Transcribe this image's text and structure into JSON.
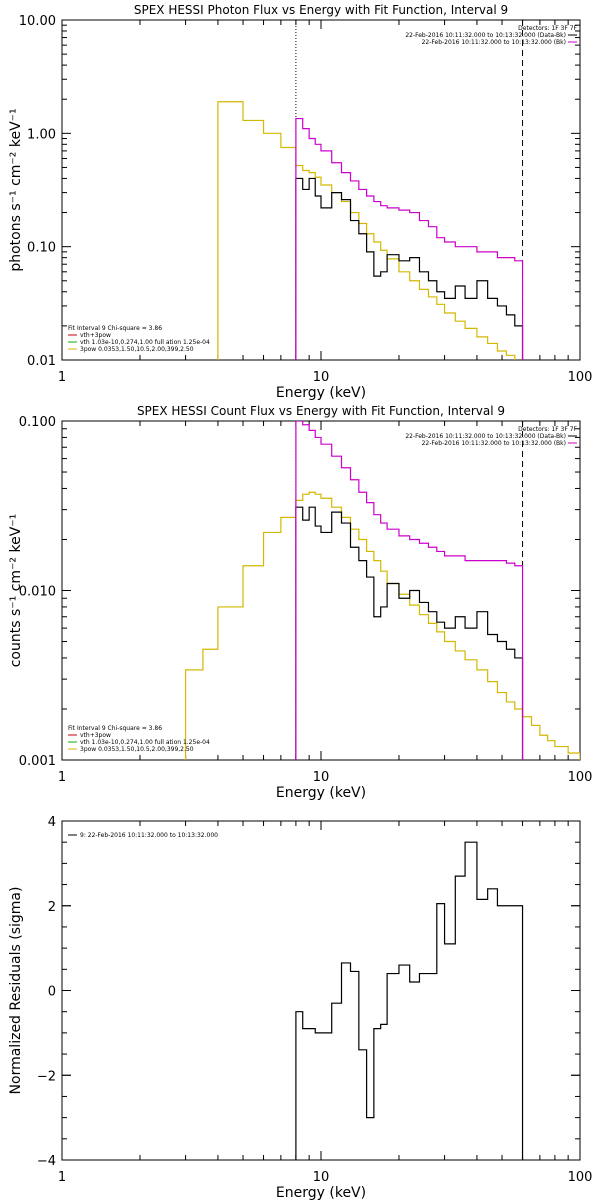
{
  "chart_data": [
    {
      "type": "line",
      "title": "SPEX HESSI Photon Flux vs Energy with Fit Function, Interval 9",
      "xlabel": "Energy (keV)",
      "ylabel": "photons s⁻¹ cm⁻² keV⁻¹",
      "xscale": "log",
      "yscale": "log",
      "xlim": [
        1,
        100
      ],
      "ylim": [
        0.01,
        10
      ],
      "xticks": [
        "1",
        "10",
        "100"
      ],
      "yticks": [
        {
          "v": 0.01,
          "label": "0.01"
        },
        {
          "v": 0.1,
          "label": "0.10"
        },
        {
          "v": 1,
          "label": "1.00"
        },
        {
          "v": 10,
          "label": "10.00"
        }
      ],
      "vlines": [
        {
          "x": 8,
          "style": "dotted"
        },
        {
          "x": 60,
          "style": "dashed"
        }
      ],
      "info_lines": [
        {
          "text": "Detectors: 1F 3F 7F",
          "color": ""
        },
        {
          "text": "22-Feb-2016 10:11:32.000 to 10:13:32.000 (Data-Bk)",
          "color": "#000000"
        },
        {
          "text": "22-Feb-2016 10:11:32.000 to 10:13:32.000 (Bk)",
          "color": "#cc00cc"
        }
      ],
      "legend": [
        {
          "text": "Fit Interval 9   Chi-square = 3.86",
          "color": ""
        },
        {
          "text": "vth+3pow",
          "color": "#cc0000"
        },
        {
          "text": "vth 1.03e-10,0.274,1.00  full ation 1.25e-04",
          "color": "#00b000"
        },
        {
          "text": "3pow 0.0353,1.50,10.5,2.00,399,2.50",
          "color": "#d4b800"
        }
      ],
      "series": [
        {
          "color": "#d4b800",
          "edges": [
            4,
            5,
            6,
            7,
            8,
            8.5,
            9,
            9.5,
            10,
            11,
            12,
            13,
            14,
            15,
            16,
            17,
            18,
            20,
            22,
            24,
            26,
            28,
            30,
            33,
            36,
            40,
            44,
            48,
            52,
            56,
            60,
            65
          ],
          "values": [
            1.9,
            1.3,
            1.0,
            0.75,
            0.52,
            0.47,
            0.45,
            0.41,
            0.35,
            0.3,
            0.25,
            0.2,
            0.16,
            0.13,
            0.11,
            0.093,
            0.078,
            0.06,
            0.05,
            0.042,
            0.036,
            0.031,
            0.026,
            0.022,
            0.019,
            0.016,
            0.014,
            0.012,
            0.011,
            0.0095,
            0.0085
          ],
          "drop_start": 0.01,
          "drop_end": 0.01
        },
        {
          "color": "#000000",
          "edges": [
            8,
            8.5,
            9,
            9.5,
            10,
            11,
            12,
            13,
            14,
            15,
            16,
            17,
            18,
            20,
            22,
            24,
            26,
            28,
            30,
            33,
            36,
            40,
            44,
            48,
            52,
            56,
            60
          ],
          "values": [
            0.4,
            0.32,
            0.4,
            0.28,
            0.22,
            0.3,
            0.26,
            0.17,
            0.13,
            0.09,
            0.055,
            0.06,
            0.085,
            0.075,
            0.08,
            0.06,
            0.05,
            0.04,
            0.035,
            0.045,
            0.035,
            0.05,
            0.035,
            0.03,
            0.025,
            0.02
          ],
          "drop_start": 0.01,
          "drop_end": 0.01
        },
        {
          "color": "#cc00cc",
          "edges": [
            8,
            8.5,
            9,
            9.5,
            10,
            11,
            12,
            13,
            14,
            15,
            16,
            17,
            18,
            20,
            22,
            24,
            26,
            28,
            30,
            33,
            36,
            40,
            44,
            48,
            52,
            56,
            60
          ],
          "values": [
            1.35,
            1.1,
            0.9,
            0.8,
            0.7,
            0.55,
            0.45,
            0.38,
            0.32,
            0.28,
            0.25,
            0.23,
            0.22,
            0.21,
            0.2,
            0.17,
            0.15,
            0.12,
            0.11,
            0.1,
            0.1,
            0.09,
            0.09,
            0.08,
            0.08,
            0.075
          ],
          "drop_start": 0.01,
          "drop_end": 0.01
        }
      ]
    },
    {
      "type": "line",
      "title": "SPEX HESSI Count Flux vs Energy with Fit Function, Interval 9",
      "xlabel": "Energy (keV)",
      "ylabel": "counts s⁻¹ cm⁻² keV⁻¹",
      "xscale": "log",
      "yscale": "log",
      "xlim": [
        1,
        100
      ],
      "ylim": [
        0.001,
        0.1
      ],
      "xticks": [
        "1",
        "10",
        "100"
      ],
      "yticks": [
        {
          "v": 0.001,
          "label": "0.001"
        },
        {
          "v": 0.01,
          "label": "0.010"
        },
        {
          "v": 0.1,
          "label": "0.100"
        }
      ],
      "vlines": [
        {
          "x": 8,
          "style": "dotted"
        },
        {
          "x": 60,
          "style": "dashed"
        }
      ],
      "info_lines": [
        {
          "text": "Detectors: 1F 3F 7F",
          "color": ""
        },
        {
          "text": "22-Feb-2016 10:11:32.000 to 10:13:32.000 (Data-Bk)",
          "color": "#000000"
        },
        {
          "text": "22-Feb-2016 10:11:32.000 to 10:13:32.000 (Bk)",
          "color": "#cc00cc"
        }
      ],
      "legend": [
        {
          "text": "Fit Interval 9   Chi-square = 3.86",
          "color": ""
        },
        {
          "text": "vth+3pow",
          "color": "#cc0000"
        },
        {
          "text": "vth 1.03e-10,0.274,1.00  full ation 1.25e-04",
          "color": "#00b000"
        },
        {
          "text": "3pow 0.0353,1.50,10.5,2.00,399,2.50",
          "color": "#d4b800"
        }
      ],
      "series": [
        {
          "color": "#d4b800",
          "edges": [
            3,
            3.5,
            4,
            5,
            6,
            7,
            8,
            8.5,
            9,
            9.5,
            10,
            11,
            12,
            13,
            14,
            15,
            16,
            17,
            18,
            20,
            22,
            24,
            26,
            28,
            30,
            33,
            36,
            40,
            44,
            48,
            52,
            56,
            60,
            65,
            70,
            75,
            80,
            90,
            100
          ],
          "values": [
            0.0034,
            0.0045,
            0.008,
            0.014,
            0.022,
            0.027,
            0.034,
            0.037,
            0.038,
            0.037,
            0.035,
            0.031,
            0.027,
            0.023,
            0.02,
            0.017,
            0.015,
            0.013,
            0.011,
            0.0095,
            0.0082,
            0.0072,
            0.0064,
            0.0057,
            0.005,
            0.0044,
            0.0039,
            0.0034,
            0.0029,
            0.0025,
            0.0022,
            0.002,
            0.0018,
            0.0016,
            0.0014,
            0.0013,
            0.0012,
            0.0011
          ],
          "drop_start": 0.001,
          "drop_end": 0.001
        },
        {
          "color": "#000000",
          "edges": [
            8,
            8.5,
            9,
            9.5,
            10,
            11,
            12,
            13,
            14,
            15,
            16,
            17,
            18,
            20,
            22,
            24,
            26,
            28,
            30,
            33,
            36,
            40,
            44,
            48,
            52,
            56,
            60
          ],
          "values": [
            0.031,
            0.026,
            0.031,
            0.024,
            0.022,
            0.029,
            0.025,
            0.018,
            0.015,
            0.012,
            0.007,
            0.008,
            0.011,
            0.009,
            0.01,
            0.0085,
            0.0075,
            0.0065,
            0.006,
            0.007,
            0.006,
            0.0075,
            0.0055,
            0.005,
            0.0045,
            0.004
          ],
          "drop_start": 0.001,
          "drop_end": 0.001
        },
        {
          "color": "#cc00cc",
          "edges": [
            8,
            8.5,
            9,
            9.5,
            10,
            11,
            12,
            13,
            14,
            15,
            16,
            17,
            18,
            20,
            22,
            24,
            26,
            28,
            30,
            33,
            36,
            40,
            44,
            48,
            52,
            56,
            60
          ],
          "values": [
            0.1,
            0.095,
            0.088,
            0.08,
            0.073,
            0.062,
            0.053,
            0.045,
            0.038,
            0.033,
            0.028,
            0.025,
            0.023,
            0.021,
            0.02,
            0.019,
            0.018,
            0.017,
            0.016,
            0.016,
            0.015,
            0.015,
            0.015,
            0.015,
            0.0145,
            0.014
          ],
          "drop_start": 0.001,
          "drop_end": 0.001
        }
      ]
    },
    {
      "type": "line",
      "title": "",
      "xlabel": "Energy (keV)",
      "ylabel": "Normalized Residuals (sigma)",
      "xscale": "log",
      "yscale": "linear",
      "xlim": [
        1,
        100
      ],
      "ylim": [
        -4,
        4
      ],
      "xticks": [
        "1",
        "10",
        "100"
      ],
      "yticks": [
        {
          "v": -4,
          "label": "−4"
        },
        {
          "v": -2,
          "label": "−2"
        },
        {
          "v": 0,
          "label": "0"
        },
        {
          "v": 2,
          "label": "2"
        },
        {
          "v": 4,
          "label": "4"
        }
      ],
      "vlines": [],
      "info_lines": [],
      "legend": [
        {
          "text": "9: 22-Feb-2016 10:11:32.000 to 10:13:32.000",
          "color": "#000000"
        }
      ],
      "series": [
        {
          "color": "#000000",
          "edges": [
            8,
            8.5,
            9,
            9.5,
            10,
            11,
            12,
            13,
            14,
            15,
            16,
            17,
            18,
            20,
            22,
            24,
            26,
            28,
            30,
            33,
            36,
            40,
            44,
            48,
            52,
            56,
            60
          ],
          "values": [
            -0.5,
            -0.9,
            -0.9,
            -1.0,
            -1.0,
            -0.3,
            0.65,
            0.45,
            -1.4,
            -3.0,
            -0.9,
            -0.8,
            0.4,
            0.6,
            0.2,
            0.4,
            0.4,
            2.05,
            1.1,
            2.7,
            3.5,
            2.15,
            2.4,
            2.0,
            2.0,
            2.0
          ],
          "drop_start": -4,
          "drop_end": -4
        }
      ]
    }
  ]
}
